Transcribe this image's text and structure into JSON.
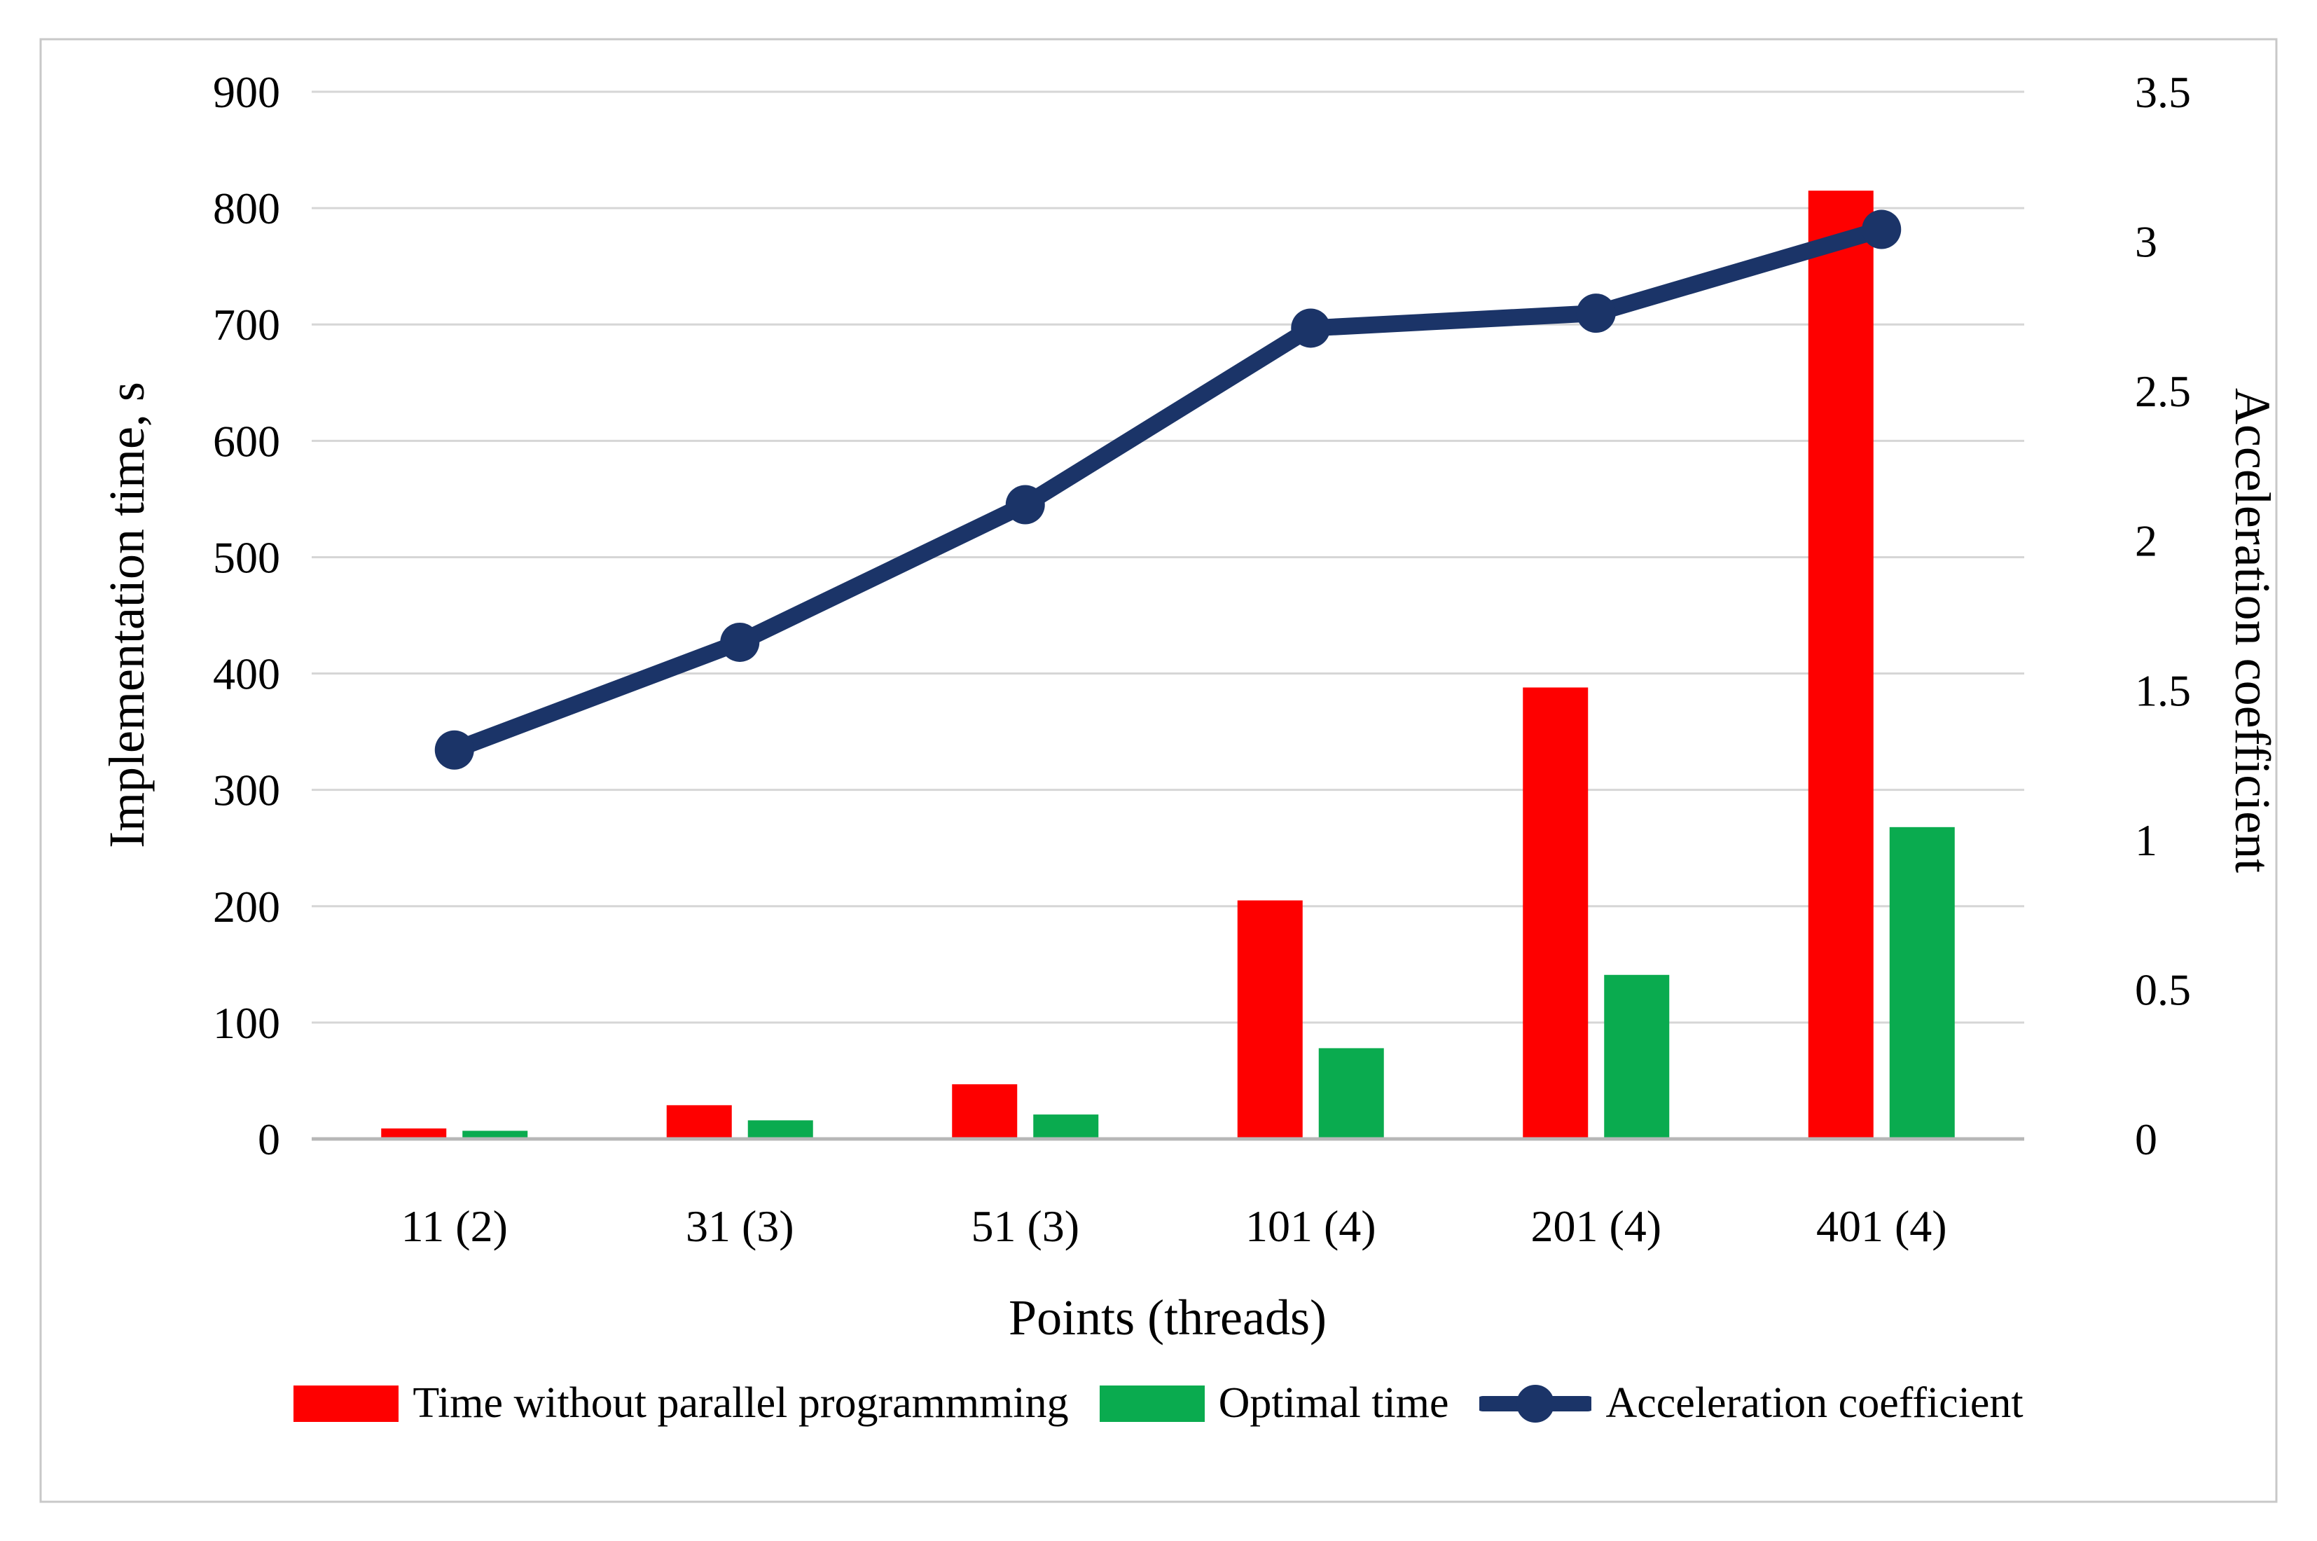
{
  "figure": {
    "border_color": "#c8c8c8",
    "background": "#ffffff"
  },
  "chart_data": {
    "type": "combo-bar-line",
    "title": "",
    "categories": [
      "11 (2)",
      "31 (3)",
      "51 (3)",
      "101 (4)",
      "201 (4)",
      "401 (4)"
    ],
    "series": [
      {
        "name": "Time without parallel programmming",
        "type": "bar",
        "axis": "left",
        "color": "#fe0000",
        "values": [
          9,
          29,
          47,
          205,
          388,
          815
        ]
      },
      {
        "name": "Optimal time",
        "type": "bar",
        "axis": "left",
        "color": "#0aab4f",
        "values": [
          7,
          16,
          21,
          78,
          141,
          268
        ]
      },
      {
        "name": "Acceleration coefficient",
        "type": "line",
        "axis": "right",
        "color": "#1b3468",
        "values": [
          1.3,
          1.66,
          2.12,
          2.71,
          2.76,
          3.04
        ]
      }
    ],
    "x_axis": {
      "label": "Points (threads)"
    },
    "left_axis": {
      "label": "Implementation time, s",
      "min": 0,
      "max": 900,
      "step": 100,
      "ticks": [
        "900",
        "800",
        "700",
        "600",
        "500",
        "400",
        "300",
        "200",
        "100",
        "0"
      ]
    },
    "right_axis": {
      "label": "Acceleration coefficient",
      "min": 0,
      "max": 3.5,
      "step": 0.5,
      "ticks": [
        "3.5",
        "3",
        "2.5",
        "2",
        "1.5",
        "1",
        "0.5",
        "0"
      ]
    },
    "grid": true,
    "legend_position": "bottom",
    "grid_color": "#d6d6d6",
    "baseline_color": "#b7b7b7"
  }
}
